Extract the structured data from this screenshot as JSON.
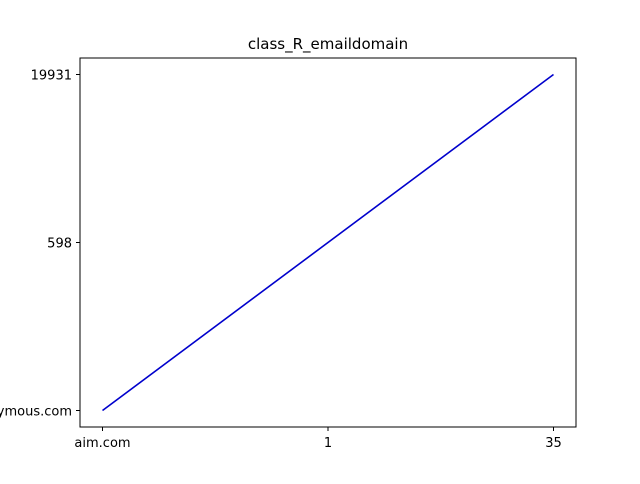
{
  "chart_data": {
    "type": "line",
    "title": "class_R_emaildomain",
    "xlabel": "",
    "ylabel": "",
    "categories": [
      "aim.com",
      "1",
      "35"
    ],
    "y_categories": [
      "anonymous.com",
      "598",
      "19931"
    ],
    "series": [
      {
        "x": [
          "aim.com",
          "35"
        ],
        "y": [
          "anonymous.com",
          "19931"
        ],
        "color": "#0000cc"
      }
    ],
    "grid": false,
    "legend": "none"
  }
}
